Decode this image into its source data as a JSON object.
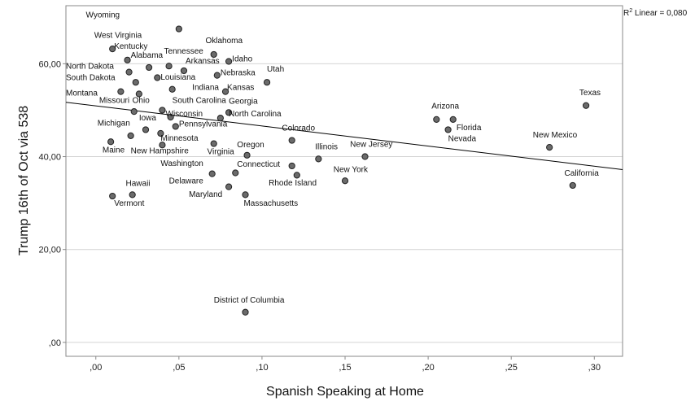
{
  "chart_data": {
    "type": "scatter",
    "xlabel": "Spanish Speaking at Home",
    "ylabel": "Trump 16th of Oct via 538",
    "xlim": [
      -0.018,
      0.317
    ],
    "ylim": [
      -3,
      72.5
    ],
    "x_ticks": [
      {
        "v": 0.0,
        "label": ",00"
      },
      {
        "v": 0.05,
        "label": ",05"
      },
      {
        "v": 0.1,
        "label": ",10"
      },
      {
        "v": 0.15,
        "label": ",15"
      },
      {
        "v": 0.2,
        "label": ",20"
      },
      {
        "v": 0.25,
        "label": ",25"
      },
      {
        "v": 0.3,
        "label": ",30"
      }
    ],
    "y_ticks": [
      {
        "v": 0,
        "label": ",00"
      },
      {
        "v": 20,
        "label": "20,00"
      },
      {
        "v": 40,
        "label": "40,00"
      },
      {
        "v": 60,
        "label": "60,00"
      }
    ],
    "grid": "horizontal",
    "fit_line": {
      "x0": -0.018,
      "y0": 51.7,
      "x1": 0.317,
      "y1": 37.2
    },
    "r2_label": {
      "main": "R",
      "sup": "2",
      "rest": " Linear = 0,080"
    },
    "colors": {
      "point_fill": "#6b6b6b",
      "point_stroke": "#222222",
      "grid": "#d4d4d4",
      "axis": "#888888",
      "line": "#000000"
    },
    "points": [
      {
        "name": "Wyoming",
        "x": 0.05,
        "y": 67.5,
        "lx": -0.006,
        "ly": 70.0,
        "anchor": "start"
      },
      {
        "name": "West Virginia",
        "x": 0.01,
        "y": 63.2,
        "lx": -0.001,
        "ly": 65.6,
        "anchor": "start"
      },
      {
        "name": "Kentucky",
        "x": 0.019,
        "y": 60.8,
        "lx": 0.011,
        "ly": 63.2,
        "anchor": "start"
      },
      {
        "name": "Oklahoma",
        "x": 0.071,
        "y": 62.0,
        "lx": 0.066,
        "ly": 64.4,
        "anchor": "start"
      },
      {
        "name": "Tennessee",
        "x": 0.044,
        "y": 59.5,
        "lx": 0.041,
        "ly": 62.2,
        "anchor": "start"
      },
      {
        "name": "Alabama",
        "x": 0.032,
        "y": 59.2,
        "lx": 0.021,
        "ly": 61.3,
        "anchor": "start"
      },
      {
        "name": "Idaho",
        "x": 0.08,
        "y": 60.5,
        "lx": 0.082,
        "ly": 60.5,
        "anchor": "start"
      },
      {
        "name": "Arkansas",
        "x": 0.053,
        "y": 58.5,
        "lx": 0.054,
        "ly": 60.1,
        "anchor": "start"
      },
      {
        "name": "North Dakota",
        "x": 0.02,
        "y": 58.2,
        "lx": -0.018,
        "ly": 58.9,
        "anchor": "start"
      },
      {
        "name": "Nebraska",
        "x": 0.073,
        "y": 57.5,
        "lx": 0.075,
        "ly": 57.5,
        "anchor": "start"
      },
      {
        "name": "South Dakota",
        "x": 0.024,
        "y": 56.0,
        "lx": -0.018,
        "ly": 56.5,
        "anchor": "start"
      },
      {
        "name": "Louisiana",
        "x": 0.037,
        "y": 57.0,
        "lx": 0.039,
        "ly": 56.6,
        "anchor": "start"
      },
      {
        "name": "Utah",
        "x": 0.103,
        "y": 56.0,
        "lx": 0.103,
        "ly": 58.3,
        "anchor": "start"
      },
      {
        "name": "Indiana",
        "x": 0.046,
        "y": 54.5,
        "lx": 0.058,
        "ly": 54.4,
        "anchor": "start"
      },
      {
        "name": "Kansas",
        "x": 0.078,
        "y": 54.0,
        "lx": 0.079,
        "ly": 54.4,
        "anchor": "start"
      },
      {
        "name": "Montana",
        "x": 0.015,
        "y": 54.0,
        "lx": -0.018,
        "ly": 53.1,
        "anchor": "start"
      },
      {
        "name": "Missouri",
        "x": 0.026,
        "y": 53.5,
        "lx": 0.002,
        "ly": 51.6,
        "anchor": "start"
      },
      {
        "name": "Ohio",
        "x": 0.023,
        "y": 49.7,
        "lx": 0.022,
        "ly": 51.6,
        "anchor": "start"
      },
      {
        "name": "South Carolina",
        "x": 0.04,
        "y": 50.0,
        "lx": 0.046,
        "ly": 51.6,
        "anchor": "start"
      },
      {
        "name": "Georgia",
        "x": 0.08,
        "y": 49.5,
        "lx": 0.08,
        "ly": 51.4,
        "anchor": "start"
      },
      {
        "name": "Wisconsin",
        "x": 0.045,
        "y": 48.5,
        "lx": 0.042,
        "ly": 48.7,
        "anchor": "start"
      },
      {
        "name": "North Carolina",
        "x": 0.075,
        "y": 48.3,
        "lx": 0.08,
        "ly": 48.7,
        "anchor": "start"
      },
      {
        "name": "Iowa",
        "x": 0.03,
        "y": 45.8,
        "lx": 0.026,
        "ly": 47.8,
        "anchor": "start"
      },
      {
        "name": "Michigan",
        "x": 0.021,
        "y": 44.5,
        "lx": 0.001,
        "ly": 46.7,
        "anchor": "start"
      },
      {
        "name": "Pennsylvania",
        "x": 0.048,
        "y": 46.5,
        "lx": 0.05,
        "ly": 46.5,
        "anchor": "start"
      },
      {
        "name": "Minnesota",
        "x": 0.039,
        "y": 45.0,
        "lx": 0.039,
        "ly": 43.4,
        "anchor": "start"
      },
      {
        "name": "Colorado",
        "x": 0.118,
        "y": 43.5,
        "lx": 0.112,
        "ly": 45.6,
        "anchor": "start"
      },
      {
        "name": "Maine",
        "x": 0.009,
        "y": 43.2,
        "lx": 0.004,
        "ly": 40.9,
        "anchor": "start"
      },
      {
        "name": "New Hampshire",
        "x": 0.04,
        "y": 42.5,
        "lx": 0.021,
        "ly": 40.7,
        "anchor": "start"
      },
      {
        "name": "Virginia",
        "x": 0.071,
        "y": 42.8,
        "lx": 0.067,
        "ly": 40.5,
        "anchor": "start"
      },
      {
        "name": "Oregon",
        "x": 0.091,
        "y": 40.3,
        "lx": 0.085,
        "ly": 42.0,
        "anchor": "start"
      },
      {
        "name": "Illinois",
        "x": 0.134,
        "y": 39.5,
        "lx": 0.132,
        "ly": 41.6,
        "anchor": "start"
      },
      {
        "name": "New Jersey",
        "x": 0.162,
        "y": 40.0,
        "lx": 0.153,
        "ly": 42.1,
        "anchor": "start"
      },
      {
        "name": "Washington",
        "x": 0.07,
        "y": 36.3,
        "lx": 0.039,
        "ly": 38.0,
        "anchor": "start"
      },
      {
        "name": "Connecticut",
        "x": 0.118,
        "y": 38.0,
        "lx": 0.085,
        "ly": 37.8,
        "anchor": "start"
      },
      {
        "name": "New York",
        "x": 0.15,
        "y": 34.8,
        "lx": 0.143,
        "ly": 36.7,
        "anchor": "start"
      },
      {
        "name": "Rhode Island",
        "x": 0.121,
        "y": 36.0,
        "lx": 0.104,
        "ly": 33.8,
        "anchor": "start"
      },
      {
        "name": "Delaware",
        "x": 0.084,
        "y": 36.5,
        "lx": 0.044,
        "ly": 34.2,
        "anchor": "start"
      },
      {
        "name": "Maryland",
        "x": 0.08,
        "y": 33.5,
        "lx": 0.056,
        "ly": 31.3,
        "anchor": "start"
      },
      {
        "name": "Massachusetts",
        "x": 0.09,
        "y": 31.8,
        "lx": 0.089,
        "ly": 29.4,
        "anchor": "start"
      },
      {
        "name": "Hawaii",
        "x": 0.022,
        "y": 31.8,
        "lx": 0.018,
        "ly": 33.7,
        "anchor": "start"
      },
      {
        "name": "Vermont",
        "x": 0.01,
        "y": 31.5,
        "lx": 0.011,
        "ly": 29.4,
        "anchor": "start"
      },
      {
        "name": "District of Columbia",
        "x": 0.09,
        "y": 6.5,
        "lx": 0.071,
        "ly": 8.6,
        "anchor": "start"
      },
      {
        "name": "Arizona",
        "x": 0.205,
        "y": 48.0,
        "lx": 0.202,
        "ly": 50.3,
        "anchor": "start"
      },
      {
        "name": "Florida",
        "x": 0.215,
        "y": 48.0,
        "lx": 0.217,
        "ly": 45.7,
        "anchor": "start"
      },
      {
        "name": "Nevada",
        "x": 0.212,
        "y": 45.8,
        "lx": 0.212,
        "ly": 43.3,
        "anchor": "start"
      },
      {
        "name": "Texas",
        "x": 0.295,
        "y": 51.0,
        "lx": 0.291,
        "ly": 53.2,
        "anchor": "start"
      },
      {
        "name": "New Mexico",
        "x": 0.273,
        "y": 42.0,
        "lx": 0.263,
        "ly": 44.1,
        "anchor": "start"
      },
      {
        "name": "California",
        "x": 0.287,
        "y": 33.8,
        "lx": 0.282,
        "ly": 35.9,
        "anchor": "start"
      }
    ]
  }
}
